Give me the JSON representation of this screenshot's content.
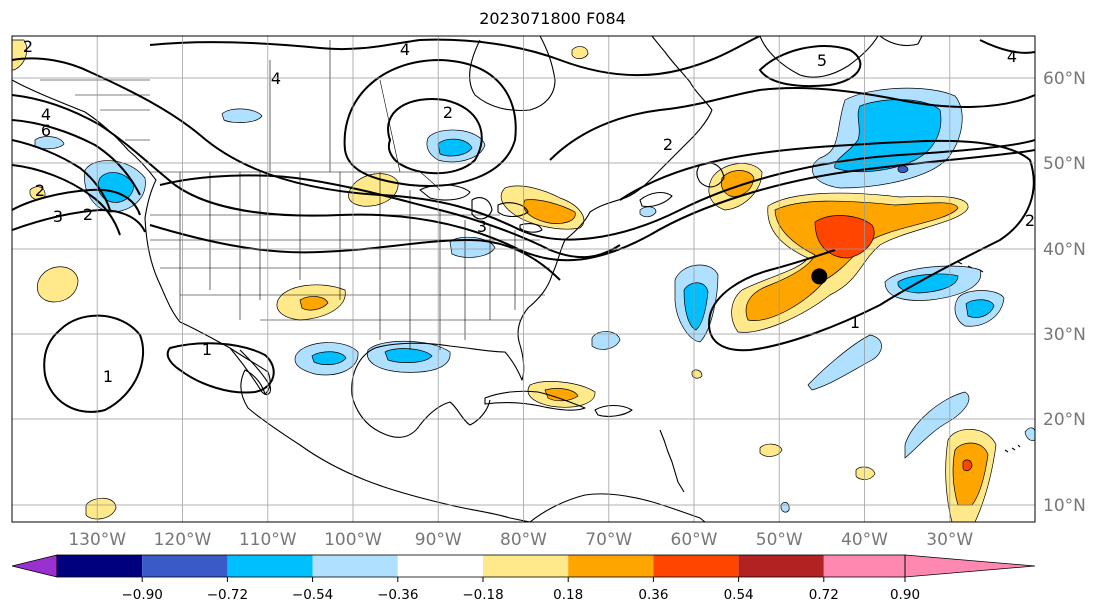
{
  "title": "2023071800 F084",
  "map": {
    "projection": "PlateCarree",
    "lon_range": [
      -140,
      -20
    ],
    "lat_range": [
      7,
      64
    ],
    "grid": true,
    "lon_labels": [
      "130°W",
      "120°W",
      "110°W",
      "100°W",
      "90°W",
      "80°W",
      "70°W",
      "60°W",
      "50°W",
      "40°W",
      "30°W"
    ],
    "lat_labels": [
      "60°N",
      "50°N",
      "40°N",
      "30°N",
      "20°N",
      "10°N"
    ],
    "marker": {
      "type": "point",
      "color": "#000000",
      "lon": -45.3,
      "lat": 35.8
    },
    "contour_labels": [
      "2",
      "4",
      "6",
      "4",
      "2",
      "3",
      "2",
      "4",
      "3",
      "2",
      "1",
      "1",
      "1",
      "5",
      "4",
      "2",
      "2"
    ]
  },
  "colorbar": {
    "tick_labels": [
      "−0.90",
      "−0.72",
      "−0.54",
      "−0.36",
      "−0.18",
      "0.18",
      "0.36",
      "0.54",
      "0.72",
      "0.90"
    ],
    "colors": [
      "#9b30d0",
      "#00007f",
      "#3a5ac8",
      "#00bfff",
      "#b0e0ff",
      "#ffffff",
      "#ffe98a",
      "#ffa500",
      "#ff4500",
      "#b22222",
      "#ff88b0"
    ],
    "extend": "both"
  }
}
